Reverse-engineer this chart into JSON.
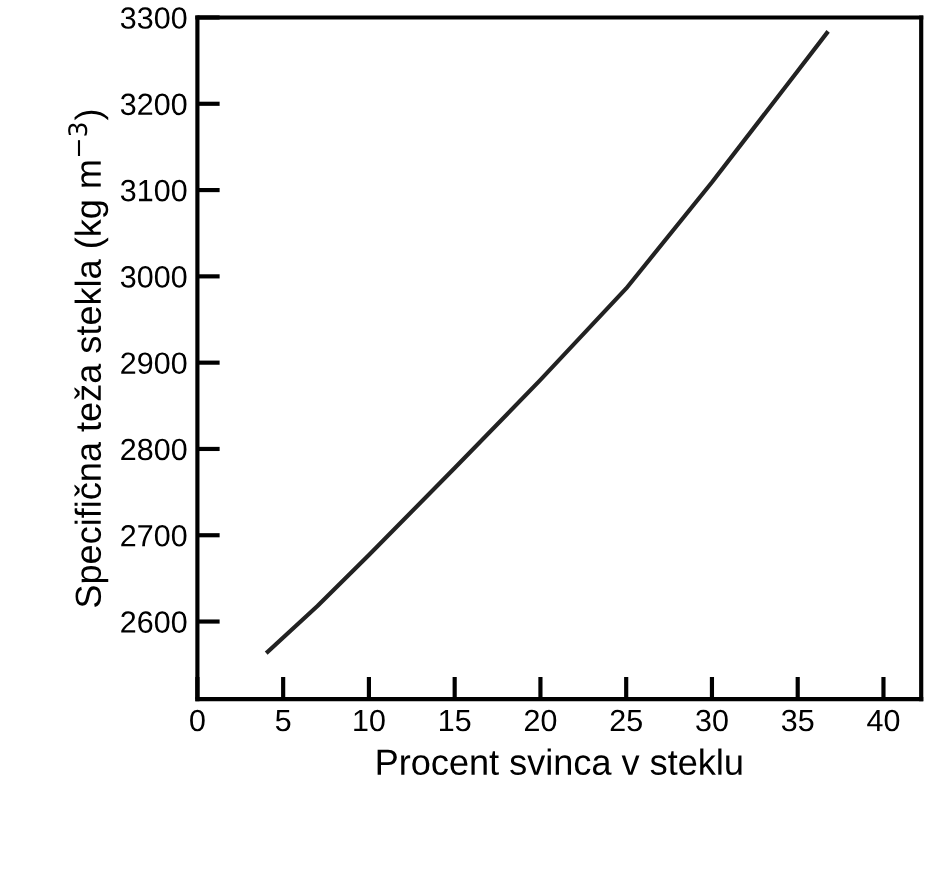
{
  "chart_data": {
    "type": "line",
    "xlabel": "Procent svinca v steklu",
    "ylabel": "Specifična teža stekla (kg m$^{−3}$)",
    "x": [
      4.1,
      7,
      10,
      15,
      20,
      25,
      30,
      35,
      36.7
    ],
    "series": [
      {
        "color": "#222222",
        "values": [
          2565,
          2618,
          2677,
          2778,
          2880,
          2986,
          3109,
          3238,
          3282
        ]
      }
    ],
    "xlim": [
      0,
      42.2
    ],
    "ylim": [
      2510,
      3300
    ],
    "xticks": [
      {
        "value": 0,
        "label": "0"
      },
      5,
      10,
      15,
      20,
      25,
      30,
      35,
      40
    ],
    "yticks": [
      2600,
      2700,
      2800,
      2900,
      3000,
      3100,
      3200,
      3300
    ],
    "grid": false,
    "marker": "none",
    "line_style": "solid"
  }
}
